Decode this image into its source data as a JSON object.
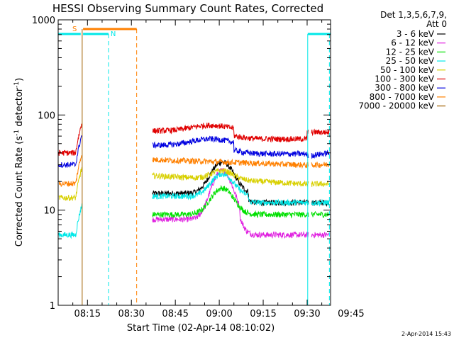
{
  "chart_data": {
    "type": "line",
    "title": "HESSI Observing Summary Count Rates, Corrected",
    "xlabel": "Start Time (02-Apr-14 08:10:02)",
    "ylabel_main": "Corrected Count Rate (s",
    "ylabel_sup1": "-1",
    "ylabel_mid": " detector",
    "ylabel_sup2": "-1",
    "ylabel_end": ")",
    "y_scale": "log",
    "ylim": [
      1,
      1000
    ],
    "y_ticks": [
      {
        "value": 1,
        "label": "1"
      },
      {
        "value": 10,
        "label": "10"
      },
      {
        "value": 100,
        "label": "100"
      },
      {
        "value": 1000,
        "label": "1000"
      }
    ],
    "xlim_minutes": [
      5,
      98
    ],
    "x_ticks": [
      {
        "minute": 15,
        "label": "08:15"
      },
      {
        "minute": 30,
        "label": "08:30"
      },
      {
        "minute": 45,
        "label": "08:45"
      },
      {
        "minute": 60,
        "label": "09:00"
      },
      {
        "minute": 75,
        "label": "09:15"
      },
      {
        "minute": 90,
        "label": "09:30"
      },
      {
        "minute": 105,
        "label": "09:45"
      }
    ],
    "legend_header": [
      "Det 1,3,5,6,7,9,",
      "Att 0"
    ],
    "legend_placement": "right",
    "series": [
      {
        "name": "3 - 6 keV",
        "color": "#000000"
      },
      {
        "name": "6 - 12 keV",
        "color": "#e020e0"
      },
      {
        "name": "12 - 25 keV",
        "color": "#00e000"
      },
      {
        "name": "25 - 50 keV",
        "color": "#00e8e8"
      },
      {
        "name": "50 - 100 keV",
        "color": "#d8d000"
      },
      {
        "name": "100 - 300 keV",
        "color": "#e00000"
      },
      {
        "name": "300 - 800 keV",
        "color": "#0000e0"
      },
      {
        "name": "800 - 7000 keV",
        "color": "#ff8000"
      },
      {
        "name": "7000 - 20000 keV",
        "color": "#a06000"
      }
    ],
    "flag_labels": {
      "saa": "S",
      "night": "N"
    },
    "timestamp": "2-Apr-2014 15:43"
  }
}
